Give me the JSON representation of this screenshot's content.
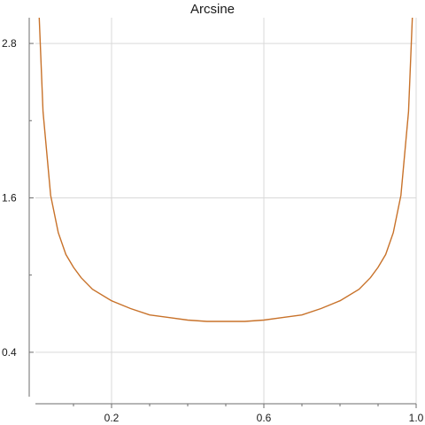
{
  "chart_data": {
    "type": "line",
    "title": "Arcsine",
    "xlabel": "",
    "ylabel": "",
    "xlim": [
      0.0,
      1.0
    ],
    "ylim": [
      0.0,
      3.0
    ],
    "x_ticks": [
      0.2,
      0.6,
      1.0
    ],
    "x_tick_labels": [
      "0.2",
      "0.6",
      "1.0"
    ],
    "x_minor_ticks": [
      0.1,
      0.3,
      0.4,
      0.5,
      0.7,
      0.8,
      0.9
    ],
    "y_ticks": [
      0.4,
      1.6,
      2.8
    ],
    "y_tick_labels": [
      "0.4",
      "1.6",
      "2.8"
    ],
    "y_minor_ticks": [
      1.0,
      2.2
    ],
    "grid": true,
    "series": [
      {
        "color": "#c8722a",
        "x": [
          0.01,
          0.02,
          0.04,
          0.06,
          0.08,
          0.1,
          0.12,
          0.15,
          0.2,
          0.25,
          0.3,
          0.35,
          0.4,
          0.45,
          0.5,
          0.55,
          0.6,
          0.65,
          0.7,
          0.75,
          0.8,
          0.85,
          0.88,
          0.9,
          0.92,
          0.94,
          0.96,
          0.98,
          0.99
        ],
        "y": [
          3.2,
          2.27,
          1.62,
          1.33,
          1.16,
          1.06,
          0.98,
          0.89,
          0.8,
          0.74,
          0.69,
          0.67,
          0.65,
          0.64,
          0.64,
          0.64,
          0.65,
          0.67,
          0.69,
          0.74,
          0.8,
          0.89,
          0.98,
          1.06,
          1.16,
          1.33,
          1.62,
          2.27,
          3.2
        ]
      }
    ]
  }
}
